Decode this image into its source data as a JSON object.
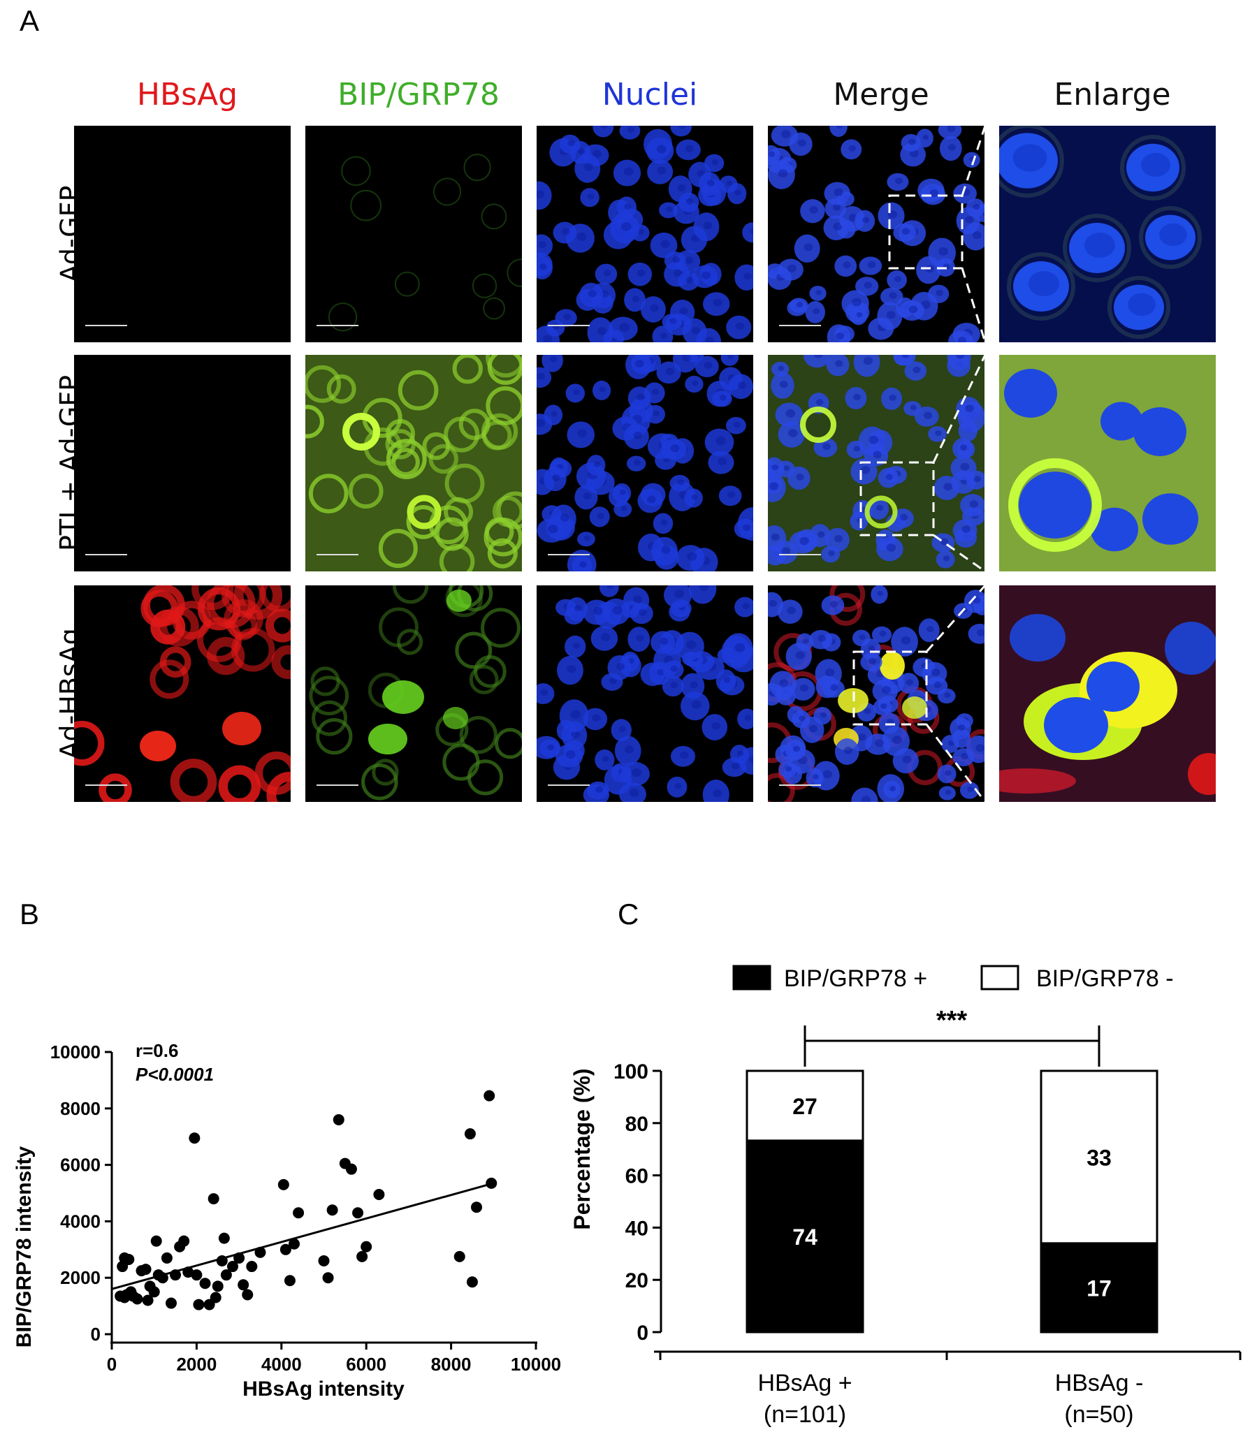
{
  "panel_letters": {
    "a": "A",
    "b": "B",
    "c": "C"
  },
  "panel_a": {
    "columns": [
      {
        "label": "HBsAg",
        "color": "#e0191d"
      },
      {
        "label": "BIP/GRP78",
        "color": "#3fae2a"
      },
      {
        "label": "Nuclei",
        "color": "#1f35d8"
      },
      {
        "label": "Merge",
        "color": "#111111"
      },
      {
        "label": "Enlarge",
        "color": "#111111"
      }
    ],
    "rows": [
      {
        "label": "Ad-GFP"
      },
      {
        "label": "PTI + Ad-GFP"
      },
      {
        "label": "Ad-HBsAg"
      }
    ]
  },
  "chart_data": [
    {
      "type": "scatter",
      "xlabel": "HBsAg intensity",
      "ylabel": "BIP/GRP78 intensity",
      "xlim": [
        0,
        10000
      ],
      "ylim": [
        0,
        10000
      ],
      "xticks": [
        0,
        2000,
        4000,
        6000,
        8000,
        10000
      ],
      "yticks": [
        0,
        2000,
        4000,
        6000,
        8000,
        10000
      ],
      "annotation_r": "r=0.6",
      "annotation_p": "P<0.0001",
      "fit_line": {
        "x": [
          0,
          9000
        ],
        "y": [
          1600,
          5350
        ]
      },
      "points": [
        [
          200,
          1350
        ],
        [
          250,
          2400
        ],
        [
          300,
          2700
        ],
        [
          350,
          1400
        ],
        [
          400,
          2650
        ],
        [
          450,
          1500
        ],
        [
          300,
          1300
        ],
        [
          500,
          1350
        ],
        [
          600,
          1250
        ],
        [
          700,
          2250
        ],
        [
          800,
          2300
        ],
        [
          850,
          1200
        ],
        [
          900,
          1700
        ],
        [
          1000,
          1500
        ],
        [
          1050,
          3300
        ],
        [
          1100,
          2100
        ],
        [
          1200,
          2000
        ],
        [
          1300,
          2700
        ],
        [
          1400,
          1100
        ],
        [
          1500,
          2100
        ],
        [
          1600,
          3100
        ],
        [
          1700,
          3300
        ],
        [
          1800,
          2200
        ],
        [
          1950,
          6950
        ],
        [
          2000,
          2100
        ],
        [
          2050,
          1050
        ],
        [
          2200,
          1800
        ],
        [
          2300,
          1050
        ],
        [
          2400,
          4800
        ],
        [
          2450,
          1300
        ],
        [
          2500,
          1700
        ],
        [
          2600,
          2600
        ],
        [
          2650,
          3400
        ],
        [
          2700,
          2100
        ],
        [
          2850,
          2400
        ],
        [
          3000,
          2700
        ],
        [
          3100,
          1750
        ],
        [
          3200,
          1400
        ],
        [
          3300,
          2400
        ],
        [
          3500,
          2900
        ],
        [
          4050,
          5300
        ],
        [
          4100,
          3000
        ],
        [
          4200,
          1900
        ],
        [
          4300,
          3200
        ],
        [
          4400,
          4300
        ],
        [
          5000,
          2600
        ],
        [
          5100,
          2000
        ],
        [
          5200,
          4400
        ],
        [
          5350,
          7600
        ],
        [
          5500,
          6050
        ],
        [
          5650,
          5850
        ],
        [
          5800,
          4300
        ],
        [
          5900,
          2750
        ],
        [
          6000,
          3100
        ],
        [
          6300,
          4950
        ],
        [
          8200,
          2750
        ],
        [
          8450,
          7100
        ],
        [
          8500,
          1850
        ],
        [
          8600,
          4500
        ],
        [
          8900,
          8450
        ],
        [
          8950,
          5350
        ]
      ]
    },
    {
      "type": "bar",
      "ylabel": "Percentage (%)",
      "ylim": [
        0,
        100
      ],
      "yticks": [
        0,
        20,
        40,
        60,
        80,
        100
      ],
      "categories": [
        "HBsAg +\n(n=101)",
        "HBsAg -\n(n=50)"
      ],
      "category_lines": [
        [
          "HBsAg +",
          "(n=101)"
        ],
        [
          "HBsAg -",
          "(n=50)"
        ]
      ],
      "series": [
        {
          "name": "BIP/GRP78 +",
          "color": "#000000",
          "percent": [
            73.3,
            34.0
          ],
          "labels": [
            "74",
            "17"
          ]
        },
        {
          "name": "BIP/GRP78 -",
          "color": "#ffffff",
          "percent": [
            26.7,
            66.0
          ],
          "labels": [
            "27",
            "33"
          ]
        }
      ],
      "significance": "***"
    }
  ]
}
